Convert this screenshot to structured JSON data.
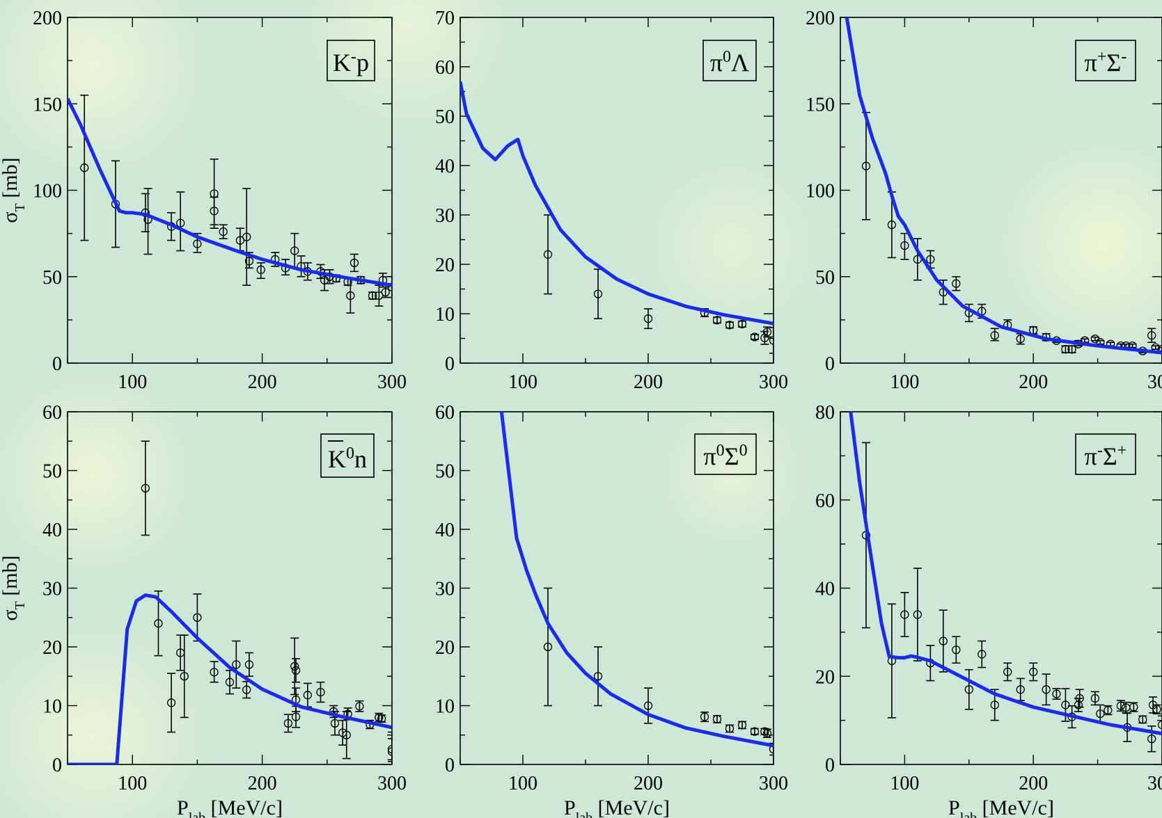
{
  "chart_data": [
    {
      "type": "scatter",
      "panel_label": "K⁻p",
      "ylabel": "σT [mb]",
      "xlabel": "",
      "xlim": [
        50,
        300
      ],
      "ylim": [
        0,
        200
      ],
      "xticks": [
        100,
        200,
        300
      ],
      "yticks": [
        0,
        50,
        100,
        150,
        200
      ],
      "curve": {
        "x": [
          50,
          60,
          75,
          85,
          90,
          95,
          100,
          110,
          130,
          150,
          180,
          200,
          230,
          260,
          300
        ],
        "y": [
          153,
          138,
          112,
          96,
          88,
          87,
          87,
          86,
          80,
          73,
          65,
          60,
          54,
          50,
          45
        ]
      },
      "points": [
        {
          "x": 63,
          "y": 113,
          "lo": 71,
          "hi": 155
        },
        {
          "x": 87,
          "y": 92,
          "lo": 67,
          "hi": 117
        },
        {
          "x": 110,
          "y": 87,
          "lo": 76,
          "hi": 98
        },
        {
          "x": 112,
          "y": 83,
          "lo": 63,
          "hi": 101
        },
        {
          "x": 130,
          "y": 79,
          "lo": 71,
          "hi": 87
        },
        {
          "x": 137,
          "y": 81,
          "lo": 65,
          "hi": 99
        },
        {
          "x": 150,
          "y": 69,
          "lo": 64,
          "hi": 75
        },
        {
          "x": 163,
          "y": 98,
          "lo": 78,
          "hi": 118
        },
        {
          "x": 163,
          "y": 88,
          "lo": 80,
          "hi": 96
        },
        {
          "x": 170,
          "y": 76,
          "lo": 72,
          "hi": 80
        },
        {
          "x": 183,
          "y": 71,
          "lo": 65,
          "hi": 78
        },
        {
          "x": 188,
          "y": 73,
          "lo": 45,
          "hi": 101
        },
        {
          "x": 190,
          "y": 59,
          "lo": 55,
          "hi": 64
        },
        {
          "x": 199,
          "y": 54,
          "lo": 49,
          "hi": 58
        },
        {
          "x": 210,
          "y": 60,
          "lo": 56,
          "hi": 64
        },
        {
          "x": 218,
          "y": 55,
          "lo": 51,
          "hi": 60
        },
        {
          "x": 225,
          "y": 65,
          "lo": 55,
          "hi": 75
        },
        {
          "x": 230,
          "y": 56,
          "lo": 50,
          "hi": 62
        },
        {
          "x": 235,
          "y": 53,
          "lo": 48,
          "hi": 58
        },
        {
          "x": 245,
          "y": 53,
          "lo": 49,
          "hi": 57
        },
        {
          "x": 248,
          "y": 48,
          "lo": 42,
          "hi": 54
        },
        {
          "x": 252,
          "y": 50,
          "lo": 46,
          "hi": 54
        },
        {
          "x": 257,
          "y": 49,
          "lo": 47,
          "hi": 51
        },
        {
          "x": 266,
          "y": 47,
          "lo": 45,
          "hi": 49
        },
        {
          "x": 268,
          "y": 39,
          "lo": 29,
          "hi": 49
        },
        {
          "x": 271,
          "y": 58,
          "lo": 53,
          "hi": 63
        },
        {
          "x": 276,
          "y": 48,
          "lo": 46,
          "hi": 50
        },
        {
          "x": 285,
          "y": 39,
          "lo": 37,
          "hi": 41
        },
        {
          "x": 290,
          "y": 39,
          "lo": 33,
          "hi": 45
        },
        {
          "x": 293,
          "y": 48,
          "lo": 44,
          "hi": 52
        },
        {
          "x": 295,
          "y": 41,
          "lo": 38,
          "hi": 44
        },
        {
          "x": 300,
          "y": 44,
          "lo": 38,
          "hi": 50
        }
      ]
    },
    {
      "type": "scatter",
      "panel_label": "π⁰Λ",
      "ylabel": "",
      "xlabel": "",
      "xlim": [
        50,
        300
      ],
      "ylim": [
        0,
        70
      ],
      "xticks": [
        100,
        200,
        300
      ],
      "yticks": [
        0,
        10,
        20,
        30,
        40,
        50,
        60,
        70
      ],
      "curve": {
        "x": [
          50,
          55,
          68,
          78,
          88,
          96,
          100,
          110,
          130,
          150,
          175,
          200,
          230,
          260,
          300
        ],
        "y": [
          57,
          50.5,
          43.5,
          41.2,
          44,
          45.3,
          42,
          36,
          27,
          21.5,
          17,
          14,
          11.5,
          9.8,
          8
        ]
      },
      "points": [
        {
          "x": 120,
          "y": 22,
          "lo": 14,
          "hi": 30
        },
        {
          "x": 160,
          "y": 14,
          "lo": 9,
          "hi": 19
        },
        {
          "x": 200,
          "y": 9,
          "lo": 7,
          "hi": 11
        },
        {
          "x": 245,
          "y": 10.2,
          "lo": 9.4,
          "hi": 11
        },
        {
          "x": 255,
          "y": 8.7,
          "lo": 8.1,
          "hi": 9.3
        },
        {
          "x": 265,
          "y": 7.7,
          "lo": 7.1,
          "hi": 8.3
        },
        {
          "x": 275,
          "y": 7.9,
          "lo": 7.3,
          "hi": 8.5
        },
        {
          "x": 285,
          "y": 5.3,
          "lo": 4.8,
          "hi": 5.8
        },
        {
          "x": 293,
          "y": 5.1,
          "lo": 3.8,
          "hi": 6.4
        },
        {
          "x": 295,
          "y": 6.3,
          "lo": 5.3,
          "hi": 7.3
        },
        {
          "x": 300,
          "y": 4.6,
          "lo": 2,
          "hi": 7.2
        }
      ]
    },
    {
      "type": "scatter",
      "panel_label": "π⁺Σ⁻",
      "ylabel": "",
      "xlabel": "",
      "xlim": [
        50,
        300
      ],
      "ylim": [
        0,
        200
      ],
      "xticks": [
        100,
        200,
        300
      ],
      "yticks": [
        0,
        50,
        100,
        150,
        200
      ],
      "curve": {
        "x": [
          55,
          65,
          75,
          85,
          90,
          95,
          100,
          110,
          125,
          145,
          175,
          210,
          250,
          300
        ],
        "y": [
          200,
          155,
          130,
          110,
          97,
          85,
          80,
          65,
          48,
          33,
          21,
          14,
          10,
          6
        ]
      },
      "points": [
        {
          "x": 70,
          "y": 114,
          "lo": 83,
          "hi": 145
        },
        {
          "x": 90,
          "y": 80,
          "lo": 61,
          "hi": 99
        },
        {
          "x": 100,
          "y": 68,
          "lo": 60,
          "hi": 75
        },
        {
          "x": 110,
          "y": 60,
          "lo": 48,
          "hi": 72
        },
        {
          "x": 120,
          "y": 60,
          "lo": 55,
          "hi": 65
        },
        {
          "x": 130,
          "y": 41,
          "lo": 34,
          "hi": 48
        },
        {
          "x": 140,
          "y": 46,
          "lo": 42,
          "hi": 50
        },
        {
          "x": 150,
          "y": 29,
          "lo": 24,
          "hi": 34
        },
        {
          "x": 160,
          "y": 30,
          "lo": 26,
          "hi": 34
        },
        {
          "x": 170,
          "y": 16,
          "lo": 13,
          "hi": 20
        },
        {
          "x": 180,
          "y": 22,
          "lo": 20,
          "hi": 25
        },
        {
          "x": 190,
          "y": 14,
          "lo": 11,
          "hi": 17
        },
        {
          "x": 200,
          "y": 19,
          "lo": 17,
          "hi": 21
        },
        {
          "x": 210,
          "y": 15,
          "lo": 13,
          "hi": 17
        },
        {
          "x": 218,
          "y": 13,
          "lo": 12,
          "hi": 14
        },
        {
          "x": 225,
          "y": 8,
          "lo": 6,
          "hi": 10
        },
        {
          "x": 230,
          "y": 8,
          "lo": 6,
          "hi": 10
        },
        {
          "x": 235,
          "y": 11,
          "lo": 10,
          "hi": 13
        },
        {
          "x": 240,
          "y": 13,
          "lo": 12,
          "hi": 14
        },
        {
          "x": 248,
          "y": 14,
          "lo": 13,
          "hi": 15
        },
        {
          "x": 252,
          "y": 12,
          "lo": 11,
          "hi": 13
        },
        {
          "x": 260,
          "y": 11,
          "lo": 10,
          "hi": 12
        },
        {
          "x": 268,
          "y": 10,
          "lo": 9,
          "hi": 11
        },
        {
          "x": 272,
          "y": 10,
          "lo": 9,
          "hi": 11
        },
        {
          "x": 277,
          "y": 10,
          "lo": 9,
          "hi": 11
        },
        {
          "x": 285,
          "y": 7,
          "lo": 6,
          "hi": 8
        },
        {
          "x": 292,
          "y": 16,
          "lo": 12,
          "hi": 20
        },
        {
          "x": 295,
          "y": 9,
          "lo": 8,
          "hi": 10
        },
        {
          "x": 300,
          "y": 8,
          "lo": 7,
          "hi": 9
        }
      ]
    },
    {
      "type": "scatter",
      "panel_label": "K̅⁰n",
      "ylabel": "σT [mb]",
      "xlabel": "Plab [MeV/c]",
      "xlim": [
        50,
        300
      ],
      "ylim": [
        0,
        60
      ],
      "xticks": [
        100,
        200,
        300
      ],
      "yticks": [
        0,
        10,
        20,
        30,
        40,
        50,
        60
      ],
      "curve": {
        "x": [
          50,
          88,
          96,
          103,
          110,
          118,
          130,
          150,
          175,
          200,
          230,
          260,
          300
        ],
        "y": [
          0,
          0,
          23,
          27.8,
          28.8,
          28.5,
          26,
          21.5,
          16.5,
          12.8,
          9.8,
          8.2,
          6.3
        ]
      },
      "points": [
        {
          "x": 110,
          "y": 47,
          "lo": 39,
          "hi": 55
        },
        {
          "x": 120,
          "y": 24,
          "lo": 18.5,
          "hi": 29.5
        },
        {
          "x": 130,
          "y": 10.5,
          "lo": 5.5,
          "hi": 15.5
        },
        {
          "x": 137,
          "y": 19,
          "lo": 16,
          "hi": 22
        },
        {
          "x": 140,
          "y": 15,
          "lo": 8,
          "hi": 22
        },
        {
          "x": 150,
          "y": 25,
          "lo": 21,
          "hi": 29
        },
        {
          "x": 163,
          "y": 15.7,
          "lo": 14,
          "hi": 17.5
        },
        {
          "x": 175,
          "y": 14,
          "lo": 12,
          "hi": 16
        },
        {
          "x": 180,
          "y": 17,
          "lo": 13,
          "hi": 21
        },
        {
          "x": 188,
          "y": 12.7,
          "lo": 11.3,
          "hi": 14.1
        },
        {
          "x": 190,
          "y": 17,
          "lo": 15,
          "hi": 19
        },
        {
          "x": 220,
          "y": 7,
          "lo": 5.5,
          "hi": 8.5
        },
        {
          "x": 225,
          "y": 16.7,
          "lo": 11.9,
          "hi": 21.5
        },
        {
          "x": 226,
          "y": 16,
          "lo": 14,
          "hi": 18
        },
        {
          "x": 226,
          "y": 8.1,
          "lo": 6.3,
          "hi": 9.9
        },
        {
          "x": 226,
          "y": 11,
          "lo": 9,
          "hi": 13
        },
        {
          "x": 235,
          "y": 11.8,
          "lo": 9.8,
          "hi": 13.8
        },
        {
          "x": 245,
          "y": 12.3,
          "lo": 10.6,
          "hi": 14
        },
        {
          "x": 255,
          "y": 9,
          "lo": 8,
          "hi": 10
        },
        {
          "x": 256,
          "y": 7,
          "lo": 5,
          "hi": 9
        },
        {
          "x": 262,
          "y": 5.4,
          "lo": 3.3,
          "hi": 7.5
        },
        {
          "x": 265,
          "y": 5,
          "lo": 1,
          "hi": 9
        },
        {
          "x": 266,
          "y": 8.6,
          "lo": 7.6,
          "hi": 9.6
        },
        {
          "x": 275,
          "y": 9.9,
          "lo": 9,
          "hi": 10.8
        },
        {
          "x": 283,
          "y": 6.8,
          "lo": 6.1,
          "hi": 7.5
        },
        {
          "x": 290,
          "y": 8,
          "lo": 7.3,
          "hi": 8.7
        },
        {
          "x": 292,
          "y": 7.8,
          "lo": 7.2,
          "hi": 8.4
        },
        {
          "x": 300,
          "y": 2.6,
          "lo": 0.8,
          "hi": 4.4
        },
        {
          "x": 300,
          "y": 2.2,
          "lo": 0.5,
          "hi": 5.5
        }
      ]
    },
    {
      "type": "scatter",
      "panel_label": "π⁰Σ⁰",
      "ylabel": "",
      "xlabel": "Plab [MeV/c]",
      "xlim": [
        50,
        300
      ],
      "ylim": [
        0,
        60
      ],
      "xticks": [
        100,
        200,
        300
      ],
      "yticks": [
        0,
        10,
        20,
        30,
        40,
        50,
        60
      ],
      "curve": {
        "x": [
          83,
          88,
          95,
          103,
          110,
          120,
          135,
          150,
          170,
          200,
          230,
          260,
          300
        ],
        "y": [
          60,
          51,
          38.5,
          33,
          29,
          24,
          19,
          15.5,
          12,
          8.5,
          6.2,
          4.8,
          3.2
        ]
      },
      "points": [
        {
          "x": 120,
          "y": 20,
          "lo": 10,
          "hi": 30
        },
        {
          "x": 160,
          "y": 15,
          "lo": 10,
          "hi": 20
        },
        {
          "x": 200,
          "y": 10,
          "lo": 7,
          "hi": 13
        },
        {
          "x": 245,
          "y": 8.1,
          "lo": 7.3,
          "hi": 8.9
        },
        {
          "x": 255,
          "y": 7.7,
          "lo": 7.1,
          "hi": 8.3
        },
        {
          "x": 265,
          "y": 6.1,
          "lo": 5.5,
          "hi": 6.7
        },
        {
          "x": 275,
          "y": 6.7,
          "lo": 6.1,
          "hi": 7.3
        },
        {
          "x": 285,
          "y": 5.6,
          "lo": 5.1,
          "hi": 6.1
        },
        {
          "x": 293,
          "y": 5.6,
          "lo": 5.1,
          "hi": 6.1
        },
        {
          "x": 295,
          "y": 5.3,
          "lo": 4.6,
          "hi": 6
        },
        {
          "x": 300,
          "y": 2.6,
          "lo": 1.6,
          "hi": 3.6
        }
      ]
    },
    {
      "type": "scatter",
      "panel_label": "π⁻Σ⁺",
      "ylabel": "",
      "xlabel": "Plab [MeV/c]",
      "xlim": [
        50,
        300
      ],
      "ylim": [
        0,
        80
      ],
      "xticks": [
        100,
        200,
        300
      ],
      "yticks": [
        0,
        20,
        40,
        60,
        80
      ],
      "curve": {
        "x": [
          58,
          65,
          75,
          82,
          88,
          95,
          100,
          105,
          110,
          120,
          140,
          170,
          200,
          230,
          260,
          300
        ],
        "y": [
          80,
          64,
          45,
          32,
          24.5,
          24.2,
          24.2,
          24.6,
          24.3,
          23.5,
          20.5,
          16,
          13,
          11,
          9,
          7
        ]
      },
      "points": [
        {
          "x": 70,
          "y": 52,
          "lo": 31,
          "hi": 73
        },
        {
          "x": 90,
          "y": 23.5,
          "lo": 10.6,
          "hi": 36.4
        },
        {
          "x": 100,
          "y": 34,
          "lo": 29,
          "hi": 39
        },
        {
          "x": 110,
          "y": 34,
          "lo": 23.5,
          "hi": 44.5
        },
        {
          "x": 120,
          "y": 23,
          "lo": 19,
          "hi": 27
        },
        {
          "x": 130,
          "y": 28,
          "lo": 21,
          "hi": 35
        },
        {
          "x": 140,
          "y": 26,
          "lo": 23,
          "hi": 29
        },
        {
          "x": 150,
          "y": 17,
          "lo": 12.5,
          "hi": 21.5
        },
        {
          "x": 160,
          "y": 25,
          "lo": 22,
          "hi": 28
        },
        {
          "x": 170,
          "y": 13.5,
          "lo": 10,
          "hi": 17
        },
        {
          "x": 180,
          "y": 21,
          "lo": 19,
          "hi": 23
        },
        {
          "x": 190,
          "y": 17,
          "lo": 14.5,
          "hi": 19.5
        },
        {
          "x": 200,
          "y": 21,
          "lo": 19,
          "hi": 23
        },
        {
          "x": 210,
          "y": 17,
          "lo": 13.5,
          "hi": 20.5
        },
        {
          "x": 218,
          "y": 16,
          "lo": 14.8,
          "hi": 17.2
        },
        {
          "x": 225,
          "y": 13.5,
          "lo": 9.8,
          "hi": 17.2
        },
        {
          "x": 230,
          "y": 10.8,
          "lo": 8.3,
          "hi": 13.3
        },
        {
          "x": 235,
          "y": 13.5,
          "lo": 12,
          "hi": 15
        },
        {
          "x": 236,
          "y": 15,
          "lo": 13,
          "hi": 17
        },
        {
          "x": 248,
          "y": 15,
          "lo": 13.5,
          "hi": 16.5
        },
        {
          "x": 252,
          "y": 11.5,
          "lo": 9.5,
          "hi": 13.5
        },
        {
          "x": 258,
          "y": 12.3,
          "lo": 11.3,
          "hi": 13.3
        },
        {
          "x": 268,
          "y": 13.3,
          "lo": 12.1,
          "hi": 14.5
        },
        {
          "x": 272,
          "y": 12.9,
          "lo": 11.7,
          "hi": 14.1
        },
        {
          "x": 273,
          "y": 8.4,
          "lo": 5.2,
          "hi": 11.6
        },
        {
          "x": 278,
          "y": 13,
          "lo": 12,
          "hi": 14
        },
        {
          "x": 285,
          "y": 10.2,
          "lo": 9.4,
          "hi": 11
        },
        {
          "x": 292,
          "y": 5.8,
          "lo": 2.9,
          "hi": 8.7
        },
        {
          "x": 293,
          "y": 13.5,
          "lo": 11.7,
          "hi": 15.3
        },
        {
          "x": 296,
          "y": 12.5,
          "lo": 11.5,
          "hi": 13.5
        },
        {
          "x": 300,
          "y": 9,
          "lo": 7,
          "hi": 11
        }
      ]
    }
  ]
}
